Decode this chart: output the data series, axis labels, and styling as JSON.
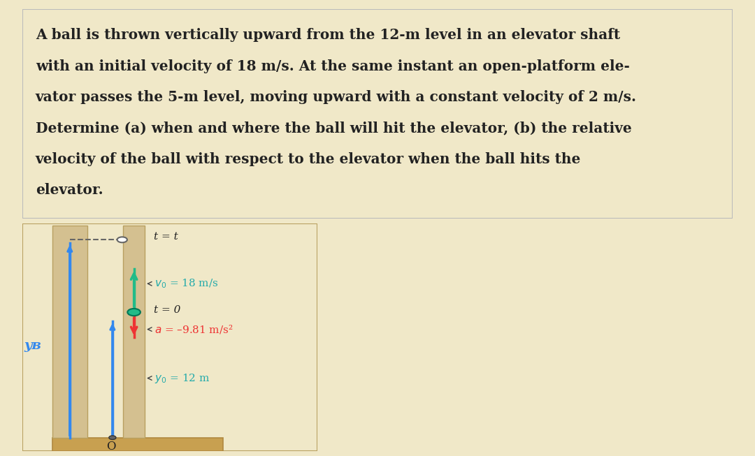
{
  "bg_color": "#f0e8c8",
  "text_box_bg": "#f0e8c8",
  "text_box_edge": "#bbbbbb",
  "diagram_bg": "#f0e8c8",
  "shaft_fill": "#d4c090",
  "shaft_edge": "#b8a060",
  "floor_fill": "#c8a050",
  "floor_edge": "#b08840",
  "blue": "#3388ee",
  "green": "#22bb88",
  "red": "#ee3333",
  "teal": "#22aaaa",
  "dark": "#222222",
  "gray": "#666666",
  "problem_lines": [
    "A ball is thrown vertically upward from the 12-m level in an elevator shaft",
    "with an initial velocity of 18 m/s. At the same instant an open-platform ele-",
    "vator passes the 5-m level, moving upward with a constant velocity of 2 m/s.",
    "Determine (a) when and where the ball will hit the elevator, (b) the relative",
    "velocity of the ball with respect to the elevator when the ball hits the",
    "elevator."
  ],
  "label_t_eq_t": "t = t",
  "label_v0": "v₀ = 18 m/s",
  "label_t0": "t = 0",
  "label_a": "a = –9.81 m/s²",
  "label_y0": "y₀ = 12 m",
  "label_yB": "yʙ",
  "label_O": "O"
}
